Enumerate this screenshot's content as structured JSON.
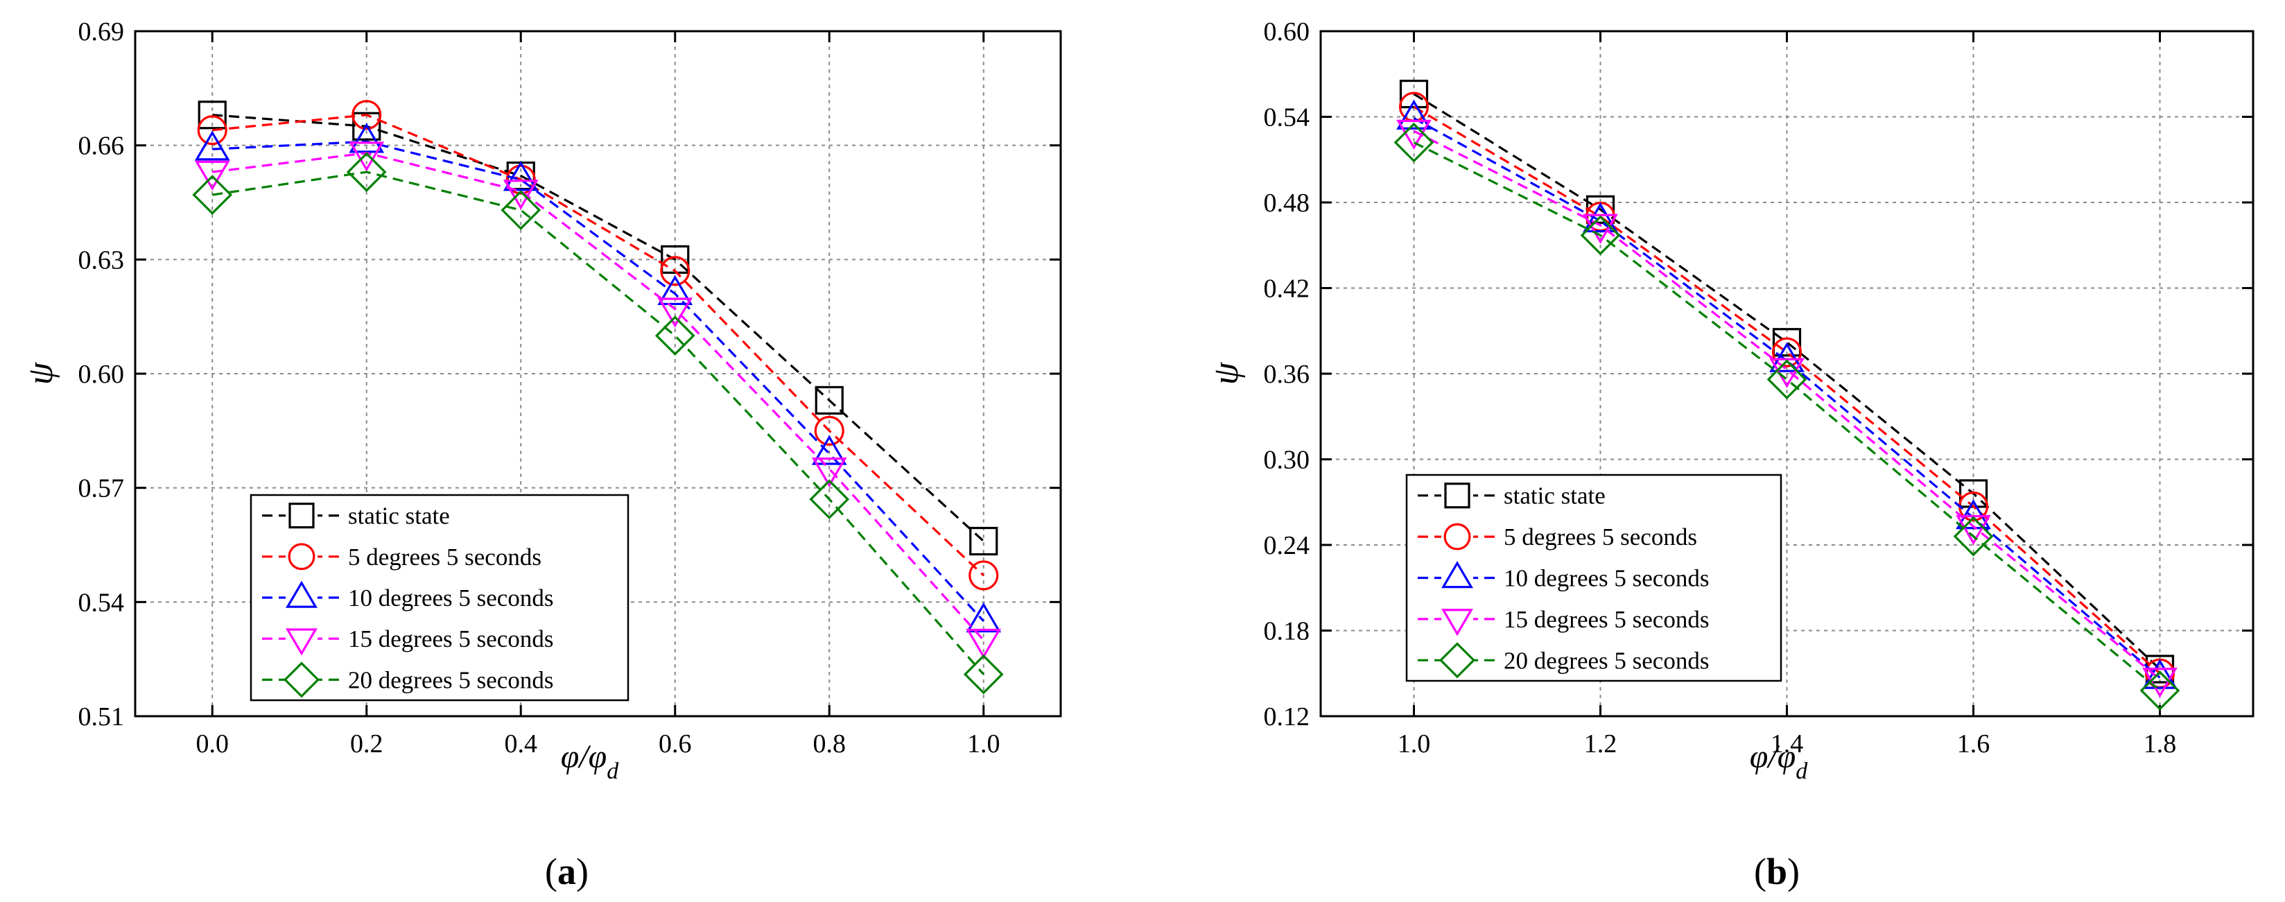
{
  "colors": {
    "static": "#000000",
    "d5": "#ff0000",
    "d10": "#0000ff",
    "d15": "#ff00ff",
    "d20": "#008000"
  },
  "chart_data": [
    {
      "type": "line",
      "panel_label": "(a)",
      "panel_letter": "a",
      "xlabel": "φ/φ",
      "xlabel_sub": "d",
      "ylabel": "ψ",
      "xlim": [
        -0.1,
        1.1
      ],
      "ylim": [
        0.51,
        0.69
      ],
      "x_ticks": [
        "0.0",
        "0.2",
        "0.4",
        "0.6",
        "0.8",
        "1.0"
      ],
      "y_ticks": [
        "0.51",
        "0.54",
        "0.57",
        "0.60",
        "0.63",
        "0.66",
        "0.69"
      ],
      "grid": true,
      "legend_position": "bottom-left",
      "x": [
        0.0,
        0.2,
        0.4,
        0.6,
        0.8,
        1.0
      ],
      "series": [
        {
          "name": "static state",
          "marker": "square",
          "color_key": "static",
          "values": [
            0.668,
            0.665,
            0.652,
            0.63,
            0.593,
            0.556
          ]
        },
        {
          "name": "5 degrees 5 seconds",
          "marker": "circle",
          "color_key": "d5",
          "values": [
            0.664,
            0.668,
            0.651,
            0.627,
            0.585,
            0.547
          ]
        },
        {
          "name": "10 degrees 5 seconds",
          "marker": "triangle-up",
          "color_key": "d10",
          "values": [
            0.659,
            0.661,
            0.651,
            0.621,
            0.579,
            0.535
          ]
        },
        {
          "name": "15 degrees 5 seconds",
          "marker": "triangle-down",
          "color_key": "d15",
          "values": [
            0.653,
            0.658,
            0.648,
            0.617,
            0.575,
            0.53
          ]
        },
        {
          "name": "20 degrees 5 seconds",
          "marker": "diamond",
          "color_key": "d20",
          "values": [
            0.647,
            0.653,
            0.643,
            0.61,
            0.567,
            0.521
          ]
        }
      ]
    },
    {
      "type": "line",
      "panel_label": "(b)",
      "panel_letter": "b",
      "xlabel": "φ/φ",
      "xlabel_sub": "d",
      "ylabel": "ψ",
      "xlim": [
        0.9,
        1.9
      ],
      "ylim": [
        0.12,
        0.6
      ],
      "x_ticks": [
        "1.0",
        "1.2",
        "1.4",
        "1.6",
        "1.8"
      ],
      "y_ticks": [
        "0.12",
        "0.18",
        "0.24",
        "0.30",
        "0.36",
        "0.42",
        "0.48",
        "0.54",
        "0.60"
      ],
      "grid": true,
      "legend_position": "bottom-left",
      "x": [
        1.0,
        1.2,
        1.4,
        1.6,
        1.8
      ],
      "series": [
        {
          "name": "static state",
          "marker": "square",
          "color_key": "static",
          "values": [
            0.556,
            0.475,
            0.382,
            0.276,
            0.153
          ]
        },
        {
          "name": "5 degrees 5 seconds",
          "marker": "circle",
          "color_key": "d5",
          "values": [
            0.547,
            0.47,
            0.375,
            0.267,
            0.15
          ]
        },
        {
          "name": "10 degrees 5 seconds",
          "marker": "triangle-up",
          "color_key": "d10",
          "values": [
            0.539,
            0.467,
            0.369,
            0.259,
            0.147
          ]
        },
        {
          "name": "15 degrees 5 seconds",
          "marker": "triangle-down",
          "color_key": "d15",
          "values": [
            0.53,
            0.464,
            0.363,
            0.253,
            0.146
          ]
        },
        {
          "name": "20 degrees 5 seconds",
          "marker": "diamond",
          "color_key": "d20",
          "values": [
            0.522,
            0.457,
            0.356,
            0.246,
            0.138
          ]
        }
      ]
    }
  ]
}
